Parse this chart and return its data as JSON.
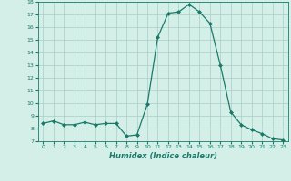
{
  "x": [
    0,
    1,
    2,
    3,
    4,
    5,
    6,
    7,
    8,
    9,
    10,
    11,
    12,
    13,
    14,
    15,
    16,
    17,
    18,
    19,
    20,
    21,
    22,
    23
  ],
  "y": [
    8.4,
    8.6,
    8.3,
    8.3,
    8.5,
    8.3,
    8.4,
    8.4,
    7.4,
    7.5,
    9.9,
    15.2,
    17.1,
    17.2,
    17.8,
    17.2,
    16.3,
    13.0,
    9.3,
    8.3,
    7.9,
    7.6,
    7.2,
    7.1
  ],
  "line_color": "#1a7a6a",
  "marker": "D",
  "marker_size": 2.0,
  "bg_color": "#d4eee8",
  "grid_color": "#aacdc5",
  "xlabel": "Humidex (Indice chaleur)",
  "ylim": [
    7,
    18
  ],
  "xlim_min": -0.5,
  "xlim_max": 23.5,
  "yticks": [
    7,
    8,
    9,
    10,
    11,
    12,
    13,
    14,
    15,
    16,
    17,
    18
  ],
  "xticks": [
    0,
    1,
    2,
    3,
    4,
    5,
    6,
    7,
    8,
    9,
    10,
    11,
    12,
    13,
    14,
    15,
    16,
    17,
    18,
    19,
    20,
    21,
    22,
    23
  ]
}
